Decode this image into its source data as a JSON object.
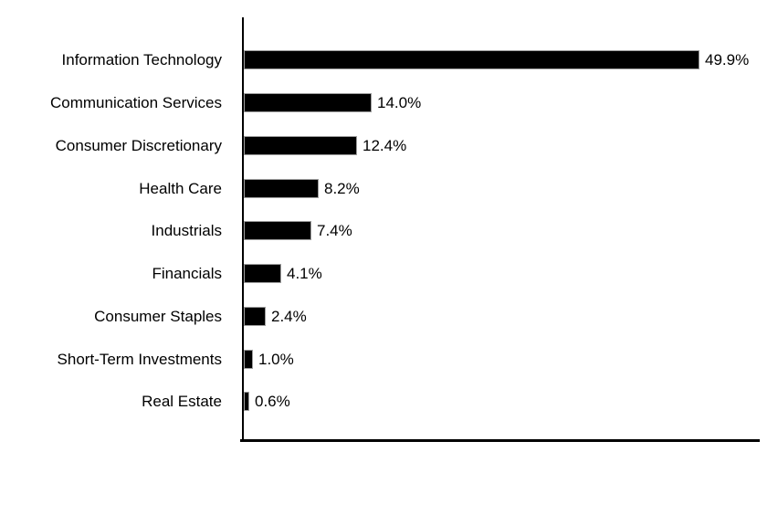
{
  "chart_data": {
    "type": "bar",
    "orientation": "horizontal",
    "title": "",
    "xlabel": "",
    "ylabel": "",
    "categories": [
      "Information Technology",
      "Communication Services",
      "Consumer Discretionary",
      "Health Care",
      "Industrials",
      "Financials",
      "Consumer Staples",
      "Short-Term Investments",
      "Real Estate"
    ],
    "values": [
      49.9,
      14.0,
      12.4,
      8.2,
      7.4,
      4.1,
      2.4,
      1.0,
      0.6
    ],
    "value_labels": [
      "49.9%",
      "14.0%",
      "12.4%",
      "8.2%",
      "7.4%",
      "4.1%",
      "2.4%",
      "1.0%",
      "0.6%"
    ],
    "xlim": [
      0,
      56.6
    ],
    "grid": false,
    "legend": false,
    "bar_color": "#000000",
    "axis_color": "#000000",
    "text_color": "#000000",
    "background": "#ffffff"
  }
}
